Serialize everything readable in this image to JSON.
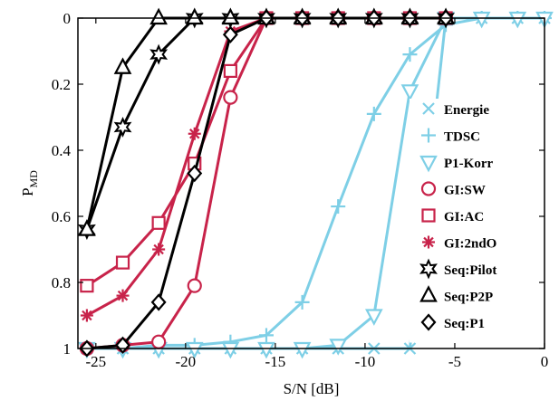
{
  "chart_data": {
    "type": "line",
    "xlabel": "S/N [dB]",
    "ylabel_main": "P",
    "ylabel_sub": "MD",
    "xlim": [
      -26,
      0
    ],
    "ylim": [
      0,
      1
    ],
    "y_reversed": true,
    "grid": false,
    "legend_position": "right",
    "x_ticks": [
      -25,
      -20,
      -15,
      -10,
      -5,
      0
    ],
    "x_tick_labels": [
      "-25",
      "-20",
      "-15",
      "-10",
      "-5",
      "0"
    ],
    "y_ticks": [
      0,
      0.2,
      0.4,
      0.6,
      0.8,
      1
    ],
    "y_tick_labels": [
      "0",
      "0.2",
      "0.4",
      "0.6",
      "0.8",
      "1"
    ],
    "colors": {
      "cyan": "#7ecfe6",
      "red": "#c8234a",
      "black": "#000000"
    },
    "series": [
      {
        "name": "Energie",
        "color": "#7ecfe6",
        "marker": "x",
        "x": [
          -25.5,
          -23.5,
          -21.5,
          -19.5,
          -17.5,
          -15.5,
          -13.5,
          -11.5,
          -9.5,
          -7.5,
          -5.5,
          -3.5,
          -1.5,
          0
        ],
        "y": [
          1,
          1,
          1,
          1,
          1,
          1,
          1,
          1,
          1,
          1,
          0,
          0,
          0,
          0
        ]
      },
      {
        "name": "TDSC",
        "color": "#7ecfe6",
        "marker": "plus",
        "x": [
          -25.5,
          -23.5,
          -21.5,
          -19.5,
          -17.5,
          -15.5,
          -13.5,
          -11.5,
          -9.5,
          -7.5,
          -5.5,
          -3.5,
          -1.5,
          0
        ],
        "y": [
          1,
          1,
          0.99,
          0.99,
          0.98,
          0.96,
          0.86,
          0.57,
          0.29,
          0.11,
          0.02,
          0,
          0,
          0
        ]
      },
      {
        "name": "P1-Korr",
        "color": "#7ecfe6",
        "marker": "triangle-down",
        "x": [
          -25.5,
          -23.5,
          -21.5,
          -19.5,
          -17.5,
          -15.5,
          -13.5,
          -11.5,
          -9.5,
          -7.5,
          -5.5,
          -3.5,
          -1.5,
          0
        ],
        "y": [
          1,
          1,
          1,
          1,
          1,
          1,
          1,
          0.99,
          0.9,
          0.22,
          0,
          0,
          0,
          0
        ]
      },
      {
        "name": "GI:SW",
        "color": "#c8234a",
        "marker": "circle",
        "x": [
          -25.5,
          -23.5,
          -21.5,
          -19.5,
          -17.5,
          -15.5,
          -13.5,
          -11.5,
          -9.5,
          -7.5,
          -5.5
        ],
        "y": [
          1,
          0.99,
          0.98,
          0.81,
          0.24,
          0,
          0,
          0,
          0,
          0,
          0
        ]
      },
      {
        "name": "GI:AC",
        "color": "#c8234a",
        "marker": "square",
        "x": [
          -25.5,
          -23.5,
          -21.5,
          -19.5,
          -17.5,
          -15.5,
          -13.5,
          -11.5,
          -9.5,
          -7.5,
          -5.5
        ],
        "y": [
          0.81,
          0.74,
          0.62,
          0.44,
          0.16,
          0,
          0,
          0,
          0,
          0,
          0
        ]
      },
      {
        "name": "GI:2ndO",
        "color": "#c8234a",
        "marker": "asterisk",
        "x": [
          -25.5,
          -23.5,
          -21.5,
          -19.5,
          -17.5,
          -15.5,
          -13.5,
          -11.5,
          -9.5,
          -7.5,
          -5.5
        ],
        "y": [
          0.9,
          0.84,
          0.7,
          0.35,
          0.04,
          0,
          0,
          0,
          0,
          0,
          0
        ]
      },
      {
        "name": "Seq:Pilot",
        "color": "#000000",
        "marker": "hexagram",
        "x": [
          -25.5,
          -23.5,
          -21.5,
          -19.5,
          -17.5,
          -15.5,
          -13.5,
          -11.5,
          -9.5,
          -7.5,
          -5.5
        ],
        "y": [
          0.64,
          0.33,
          0.11,
          0,
          0,
          0,
          0,
          0,
          0,
          0,
          0
        ]
      },
      {
        "name": "Seq:P2P",
        "color": "#000000",
        "marker": "triangle-up",
        "x": [
          -25.5,
          -23.5,
          -21.5,
          -19.5,
          -17.5,
          -15.5,
          -13.5,
          -11.5,
          -9.5,
          -7.5,
          -5.5
        ],
        "y": [
          0.64,
          0.15,
          0,
          0,
          0,
          0,
          0,
          0,
          0,
          0,
          0
        ]
      },
      {
        "name": "Seq:P1",
        "color": "#000000",
        "marker": "diamond",
        "x": [
          -25.5,
          -23.5,
          -21.5,
          -19.5,
          -17.5,
          -15.5,
          -13.5,
          -11.5,
          -9.5,
          -7.5,
          -5.5
        ],
        "y": [
          1,
          0.99,
          0.86,
          0.47,
          0.05,
          0,
          0,
          0,
          0,
          0,
          0
        ]
      }
    ]
  }
}
